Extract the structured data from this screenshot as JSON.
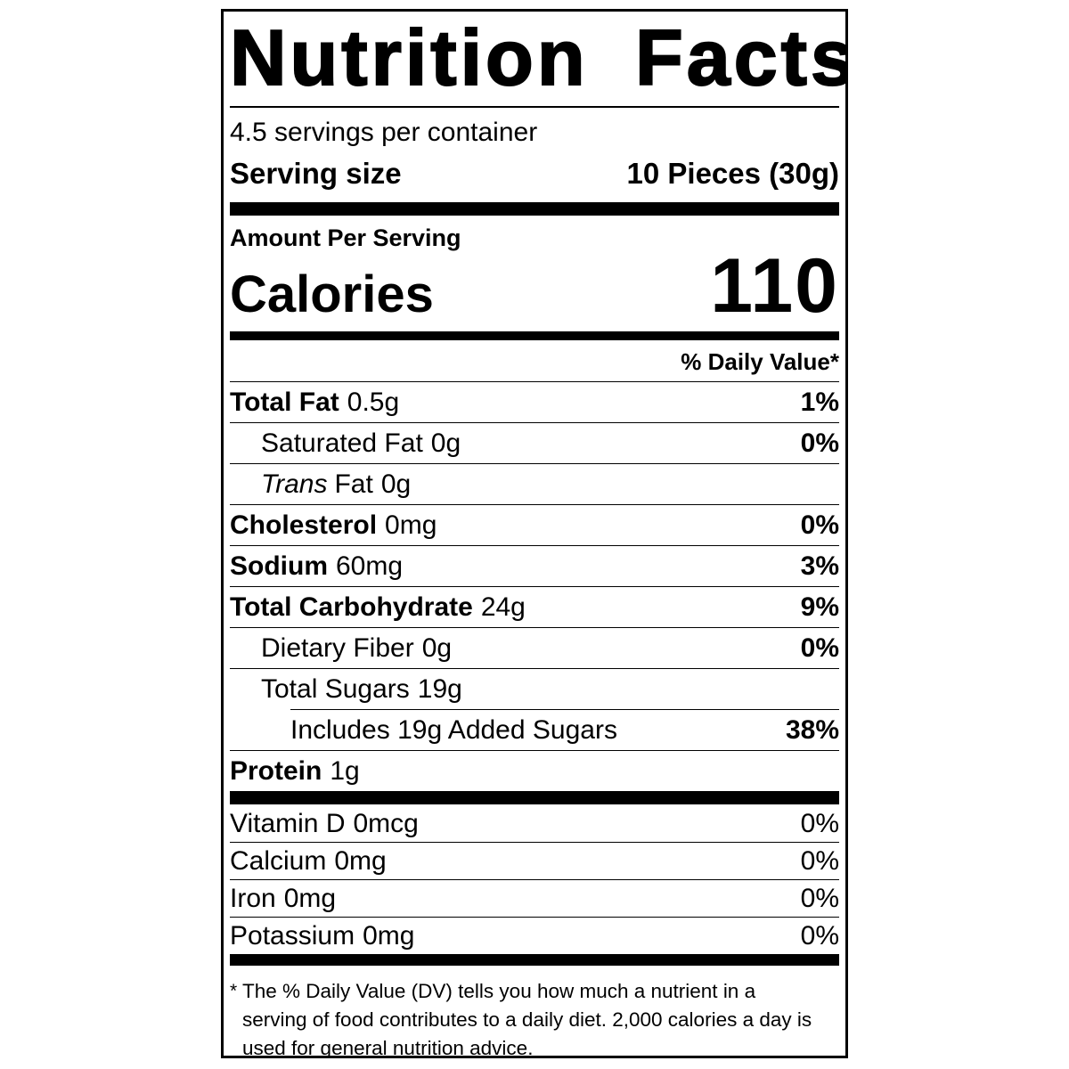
{
  "colors": {
    "ink": "#000000",
    "background": "#ffffff"
  },
  "label": {
    "title": "Nutrition Facts",
    "servings_per_container": "4.5 servings per container",
    "serving_size": {
      "label": "Serving size",
      "value": "10 Pieces (30g)"
    },
    "amount_per_serving": "Amount Per Serving",
    "calories": {
      "label": "Calories",
      "value": "110"
    },
    "daily_value_header": "% Daily Value*",
    "nutrient_rows": [
      {
        "name": "Total Fat",
        "amount": "0.5g",
        "dv": "1%"
      },
      {
        "name": "Saturated Fat",
        "amount": "0g",
        "dv": "0%"
      },
      {
        "name_italic": "Trans",
        "name": "Fat",
        "amount": "0g",
        "dv": ""
      },
      {
        "name": "Cholesterol",
        "amount": "0mg",
        "dv": "0%"
      },
      {
        "name": "Sodium",
        "amount": "60mg",
        "dv": "3%"
      },
      {
        "name": "Total Carbohydrate",
        "amount": "24g",
        "dv": "9%"
      },
      {
        "name": "Dietary Fiber",
        "amount": "0g",
        "dv": "0%"
      },
      {
        "name": "Total Sugars",
        "amount": "19g",
        "dv": ""
      },
      {
        "name": "Includes 19g Added Sugars",
        "amount": "",
        "dv": "38%"
      },
      {
        "name": "Protein",
        "amount": "1g",
        "dv": ""
      }
    ],
    "micronutrient_rows": [
      {
        "name": "Vitamin D",
        "amount": "0mcg",
        "dv": "0%"
      },
      {
        "name": "Calcium",
        "amount": "0mg",
        "dv": "0%"
      },
      {
        "name": "Iron",
        "amount": "0mg",
        "dv": "0%"
      },
      {
        "name": "Potassium",
        "amount": "0mg",
        "dv": "0%"
      }
    ],
    "footnote": {
      "asterisk": "*",
      "text": "The % Daily Value (DV) tells you how much a nutrient in a serving of food contributes to a daily diet. 2,000 calories a day is used for general nutrition advice."
    }
  }
}
